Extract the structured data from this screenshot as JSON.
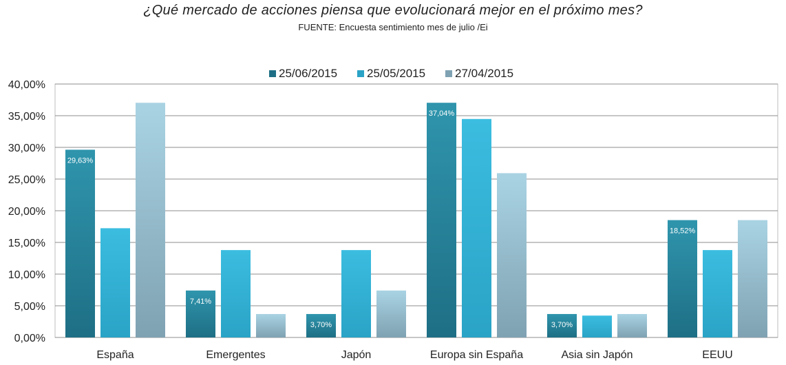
{
  "chart_data": {
    "type": "bar",
    "title": "¿Qué mercado de acciones piensa que evolucionará mejor en el próximo mes?",
    "subtitle": "FUENTE: Encuesta sentimiento mes de julio /Ei",
    "categories": [
      "España",
      "Emergentes",
      "Japón",
      "Europa sin España",
      "Asia sin Japón",
      "EEUU"
    ],
    "series": [
      {
        "name": "25/06/2015",
        "values": [
          29.63,
          7.41,
          3.7,
          37.04,
          3.7,
          18.52
        ],
        "color": "#1e6f85",
        "colorLight": "#2f95ad",
        "labels": [
          "29,63%",
          "7,41%",
          "3,70%",
          "37,04%",
          "3,70%",
          "18,52%"
        ]
      },
      {
        "name": "25/05/2015",
        "values": [
          17.24,
          13.79,
          13.79,
          34.48,
          3.45,
          13.79
        ],
        "color": "#2aa3c6",
        "colorLight": "#3bbde0"
      },
      {
        "name": "27/04/2015",
        "values": [
          37.04,
          3.7,
          7.41,
          25.93,
          3.7,
          18.52
        ],
        "color": "#7fa2b2",
        "colorLight": "#a9d3e3"
      }
    ],
    "ylim": [
      0,
      40
    ],
    "yticks": [
      "0,00%",
      "5,00%",
      "10,00%",
      "15,00%",
      "20,00%",
      "25,00%",
      "30,00%",
      "35,00%",
      "40,00%"
    ],
    "legend_position": "top-center",
    "grid": true
  }
}
